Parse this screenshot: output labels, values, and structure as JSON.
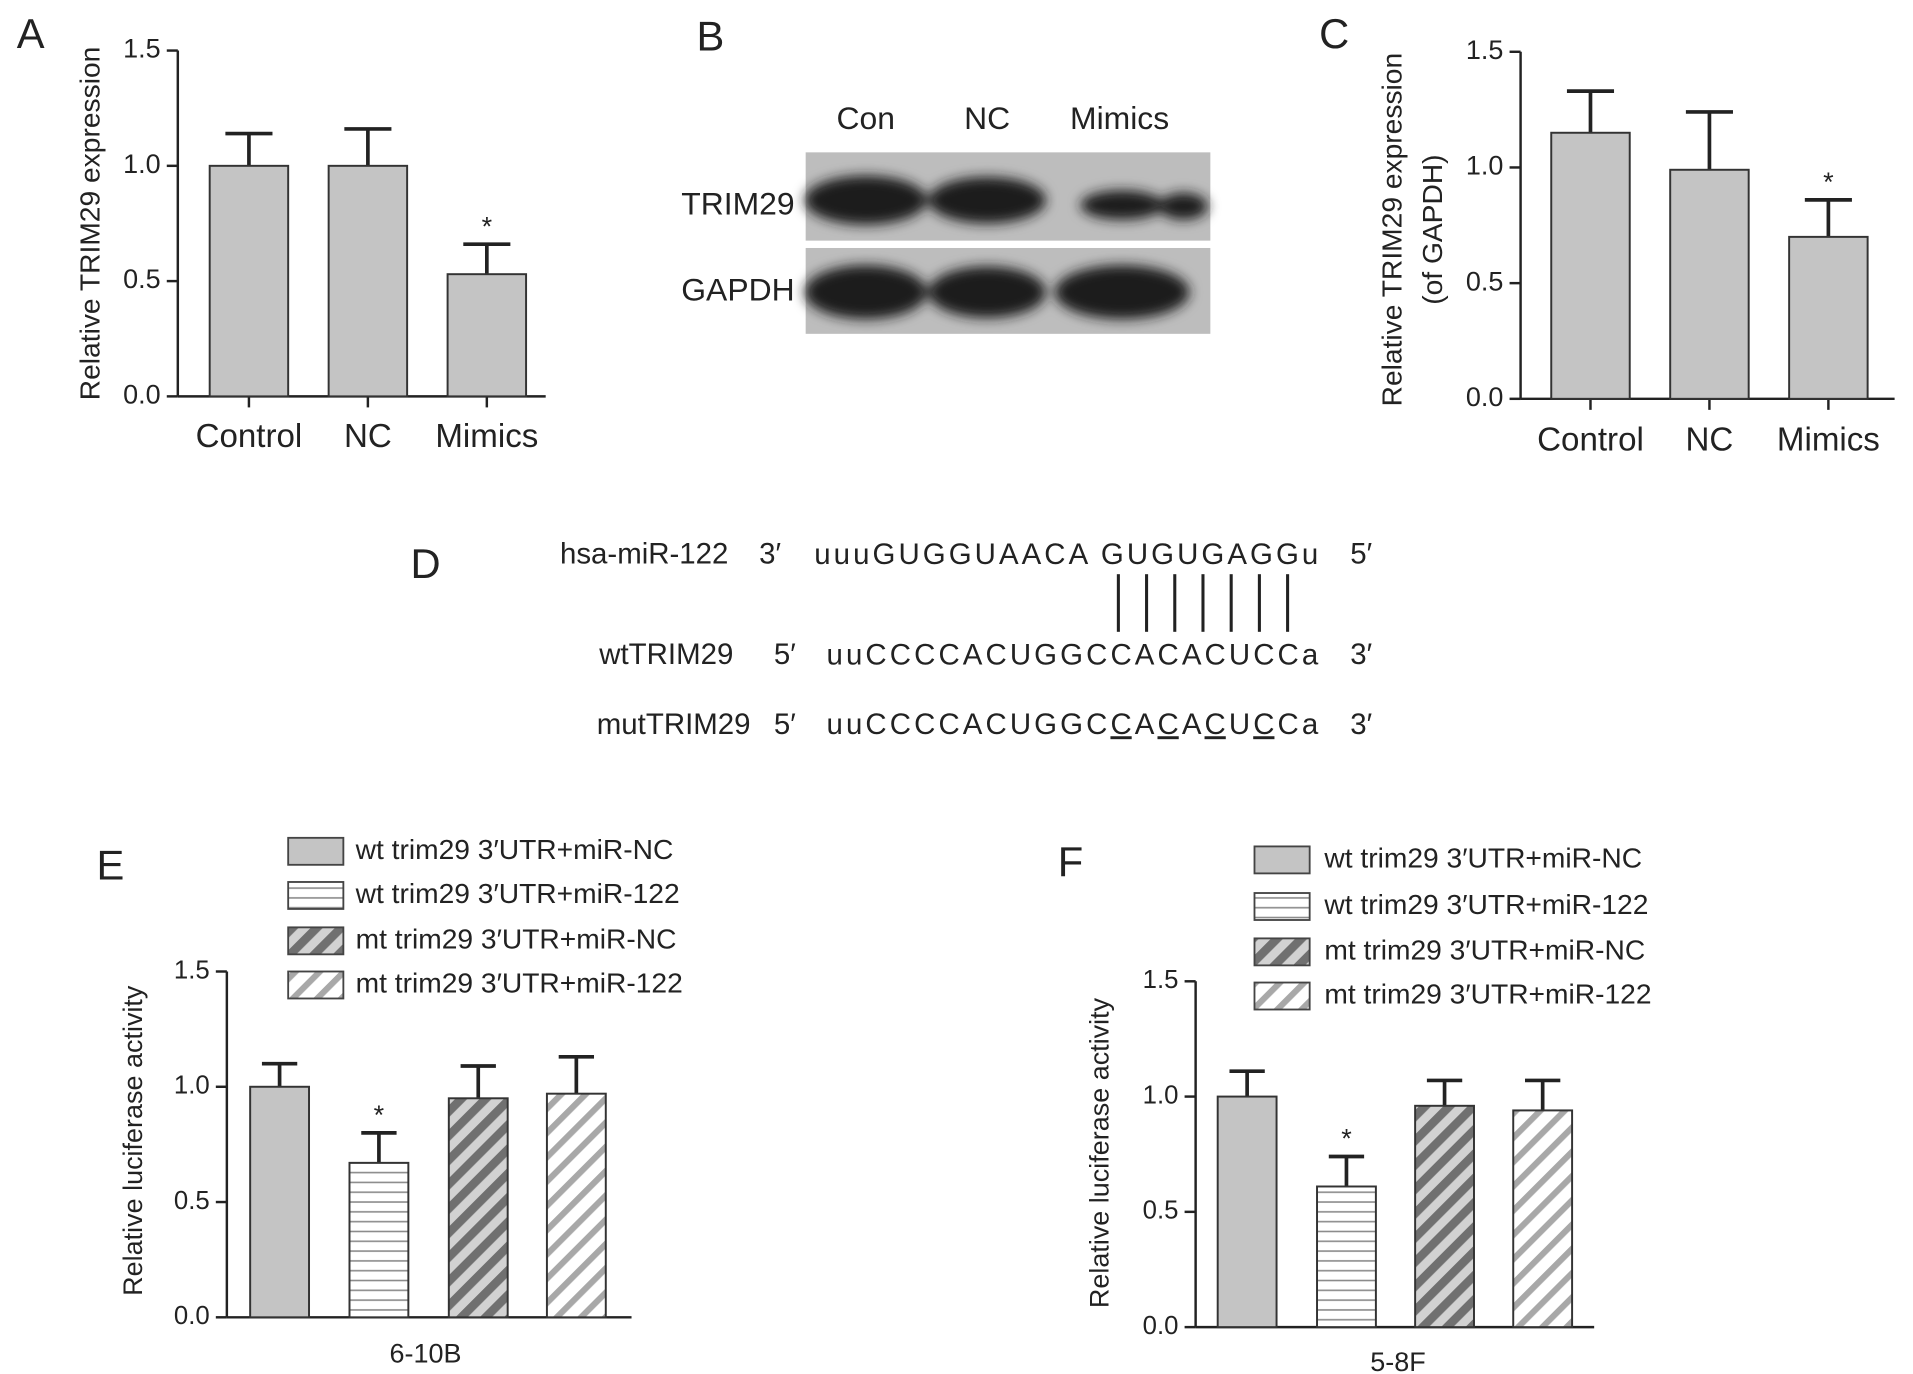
{
  "chart_data": [
    {
      "type": "bar",
      "panel": "A",
      "ylabel": "Relative TRIM29 expression",
      "categories": [
        "Control",
        "NC",
        "Mimics"
      ],
      "values": [
        1.0,
        1.0,
        0.53
      ],
      "errors": [
        0.14,
        0.16,
        0.13
      ],
      "significance": [
        null,
        null,
        "*"
      ],
      "color": "#c4c4c4",
      "ylim": [
        0,
        1.5
      ],
      "yticks": [
        {
          "value": 0,
          "label": "0.0"
        },
        0.5,
        {
          "value": 1,
          "label": "1.0"
        },
        1.5
      ]
    },
    {
      "type": "bar",
      "panel": "C",
      "ylabel": [
        "Relative TRIM29 expression",
        "(of GAPDH)"
      ],
      "categories": [
        "Control",
        "NC",
        "Mimics"
      ],
      "values": [
        1.15,
        0.99,
        0.7
      ],
      "errors": [
        0.18,
        0.25,
        0.16
      ],
      "significance": [
        null,
        null,
        "*"
      ],
      "color": "#c4c4c4",
      "ylim": [
        0,
        1.5
      ],
      "yticks": [
        {
          "value": 0,
          "label": "0.0"
        },
        0.5,
        {
          "value": 1,
          "label": "1.0"
        },
        1.5
      ]
    },
    {
      "type": "bar",
      "panel": "E",
      "ylabel": "Relative luciferase activity",
      "categories": [
        "6-10B"
      ],
      "series": [
        {
          "name": "wt trim29 3′UTR+miR-NC",
          "pattern": "solid",
          "color": "#c4c4c4",
          "values": [
            1.0
          ],
          "errors": [
            0.1
          ],
          "significance": [
            null
          ]
        },
        {
          "name": "wt trim29 3′UTR+miR-122",
          "pattern": "horizontal",
          "color": "#8a8a8a",
          "values": [
            0.67
          ],
          "errors": [
            0.13
          ],
          "significance": [
            "*"
          ]
        },
        {
          "name": "mt trim29 3′UTR+miR-NC",
          "pattern": "diagonal-dark",
          "color": "#707070",
          "values": [
            0.95
          ],
          "errors": [
            0.14
          ],
          "significance": [
            null
          ]
        },
        {
          "name": "mt trim29 3′UTR+miR-122",
          "pattern": "diagonal-light",
          "color": "#a8a8a8",
          "values": [
            0.97
          ],
          "errors": [
            0.16
          ],
          "significance": [
            null
          ]
        }
      ],
      "ylim": [
        0,
        1.5
      ],
      "yticks": [
        {
          "value": 0,
          "label": "0.0"
        },
        0.5,
        {
          "value": 1,
          "label": "1.0"
        },
        1.5
      ]
    },
    {
      "type": "bar",
      "panel": "F",
      "ylabel": "Relative luciferase activity",
      "categories": [
        "5-8F"
      ],
      "series": [
        {
          "name": "wt trim29 3′UTR+miR-NC",
          "pattern": "solid",
          "color": "#c4c4c4",
          "values": [
            1.0
          ],
          "errors": [
            0.11
          ],
          "significance": [
            null
          ]
        },
        {
          "name": "wt trim29 3′UTR+miR-122",
          "pattern": "horizontal",
          "color": "#8a8a8a",
          "values": [
            0.61
          ],
          "errors": [
            0.13
          ],
          "significance": [
            "*"
          ]
        },
        {
          "name": "mt trim29 3′UTR+miR-NC",
          "pattern": "diagonal-dark",
          "color": "#707070",
          "values": [
            0.96
          ],
          "errors": [
            0.11
          ],
          "significance": [
            null
          ]
        },
        {
          "name": "mt trim29 3′UTR+miR-122",
          "pattern": "diagonal-light",
          "color": "#a8a8a8",
          "values": [
            0.94
          ],
          "errors": [
            0.13
          ],
          "significance": [
            null
          ]
        }
      ],
      "ylim": [
        0,
        1.5
      ],
      "yticks": [
        {
          "value": 0,
          "label": "0.0"
        },
        0.5,
        {
          "value": 1,
          "label": "1.0"
        },
        1.5
      ]
    }
  ],
  "blot": {
    "panel": "B",
    "lanes": [
      "Con",
      "NC",
      "Mimics"
    ],
    "proteins": [
      "TRIM29",
      "GAPDH"
    ]
  },
  "sequence": {
    "panel": "D",
    "rows": [
      {
        "name": "hsa-miR-122",
        "left": "3′",
        "seq": [
          {
            "text": "uuuGUGGUAACA GUGUGAGGu"
          }
        ],
        "right": "5′"
      },
      {
        "name": "wtTRIM29",
        "left": "5′",
        "seq": [
          {
            "text": "uuCCCCACUGGCCACACUCCa"
          }
        ],
        "right": "3′"
      },
      {
        "name": "mutTRIM29",
        "left": "5′",
        "seq": [
          {
            "text": "uuCCCCACUGGC"
          },
          {
            "text": "C",
            "underline": true
          },
          {
            "text": "A"
          },
          {
            "text": "C",
            "underline": true
          },
          {
            "text": "A"
          },
          {
            "text": "C",
            "underline": true
          },
          {
            "text": "U"
          },
          {
            "text": "C",
            "underline": true
          },
          {
            "text": "Ca"
          }
        ],
        "right": "3′"
      }
    ]
  }
}
